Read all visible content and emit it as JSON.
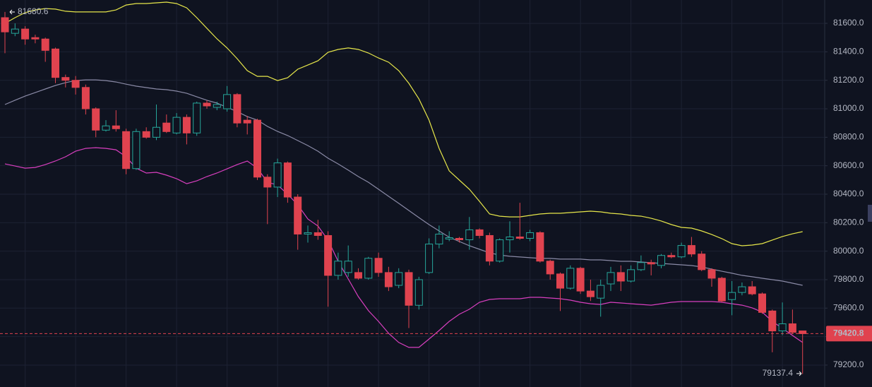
{
  "chart_data": {
    "type": "candlestick",
    "ylim": [
      79046,
      81764
    ],
    "yticks": [
      {
        "value": 79200,
        "label": "79200.0"
      },
      {
        "value": 79400,
        "label": "79400.0"
      },
      {
        "value": 79600,
        "label": "79600.0"
      },
      {
        "value": 79800,
        "label": "79800.0"
      },
      {
        "value": 80000,
        "label": "80000.0"
      },
      {
        "value": 80200,
        "label": "80200.0"
      },
      {
        "value": 80400,
        "label": "80400.0"
      },
      {
        "value": 80600,
        "label": "80600.0"
      },
      {
        "value": 80800,
        "label": "80800.0"
      },
      {
        "value": 81000,
        "label": "81000.0"
      },
      {
        "value": 81200,
        "label": "81200.0"
      },
      {
        "value": 81400,
        "label": "81400.0"
      },
      {
        "value": 81600,
        "label": "81600.0"
      }
    ],
    "grid": true,
    "up_color": "#26a69a",
    "down_color": "#e0434f",
    "candles": {
      "open": [
        81640,
        81530,
        81560,
        81500,
        81490,
        81420,
        81220,
        81200,
        81150,
        81000,
        80850,
        80880,
        80840,
        80580,
        80840,
        80800,
        80900,
        80830,
        80940,
        80830,
        81040,
        81010,
        81000,
        81100,
        80920,
        80920,
        80520,
        80450,
        80620,
        80380,
        80120,
        80130,
        80110,
        79830,
        79850,
        79850,
        79810,
        79950,
        79850,
        79760,
        79850,
        79620,
        79850,
        80050,
        80085,
        80090,
        80080,
        80150,
        80110,
        79930,
        80080,
        80100,
        80090,
        80130,
        79930,
        79840,
        79740,
        79880,
        79720,
        79670,
        79770,
        79850,
        79790,
        79870,
        79920,
        79900,
        79970,
        79960,
        80040,
        79980,
        79870,
        79810,
        79660,
        79710,
        79750,
        79700,
        79580,
        79440,
        79490,
        79440
      ],
      "high": [
        81680.6,
        81600,
        81580,
        81520,
        81500,
        81430,
        81240,
        81230,
        81170,
        81010,
        80920,
        80990,
        80860,
        80860,
        80870,
        81030,
        80960,
        80970,
        80960,
        81050,
        81060,
        81050,
        81160,
        81110,
        80950,
        80930,
        80540,
        80650,
        80630,
        80400,
        80180,
        80220,
        80140,
        79990,
        80040,
        79880,
        79960,
        79990,
        79890,
        79880,
        79870,
        79820,
        80090,
        80180,
        80140,
        80100,
        80240,
        80160,
        80130,
        80090,
        80210,
        80340,
        80150,
        80140,
        79940,
        79850,
        79900,
        79890,
        79800,
        79800,
        79890,
        79900,
        79900,
        79970,
        79940,
        79980,
        79990,
        80060,
        80100,
        80000,
        79880,
        79820,
        79790,
        79780,
        79790,
        79710,
        79590,
        79640,
        79590,
        79440
      ],
      "low": [
        81390,
        81510,
        81450,
        81460,
        81330,
        81180,
        81150,
        81100,
        80960,
        80800,
        80840,
        80840,
        80540,
        80570,
        80790,
        80780,
        80830,
        80820,
        80750,
        80810,
        81000,
        80990,
        80980,
        80870,
        80820,
        80500,
        80190,
        80380,
        80340,
        80010,
        80060,
        80080,
        79610,
        79800,
        79820,
        79800,
        79800,
        79820,
        79720,
        79740,
        79460,
        79590,
        79840,
        80020,
        80070,
        80060,
        80010,
        80090,
        79900,
        79920,
        79990,
        80080,
        80070,
        79920,
        79800,
        79580,
        79730,
        79700,
        79650,
        79540,
        79720,
        79720,
        79780,
        79860,
        79830,
        79880,
        79950,
        79950,
        79960,
        79860,
        79750,
        79640,
        79550,
        79690,
        79690,
        79560,
        79290,
        79410,
        79420,
        79137.4
      ],
      "close": [
        81540,
        81560,
        81490,
        81490,
        81410,
        81220,
        81200,
        81150,
        81000,
        80850,
        80880,
        80860,
        80580,
        80840,
        80800,
        80870,
        80840,
        80940,
        80830,
        81040,
        81020,
        81030,
        81100,
        80900,
        80900,
        80520,
        80450,
        80620,
        80380,
        80120,
        80130,
        80110,
        79830,
        79930,
        79930,
        79810,
        79950,
        79850,
        79750,
        79850,
        79620,
        79800,
        80050,
        80120,
        80095,
        80080,
        80150,
        80110,
        79930,
        80080,
        80100,
        80090,
        80130,
        79930,
        79840,
        79740,
        79880,
        79720,
        79680,
        79760,
        79850,
        79790,
        79870,
        79920,
        79910,
        79970,
        79960,
        80040,
        79980,
        79870,
        79810,
        79650,
        79710,
        79750,
        79700,
        79570,
        79440,
        79490,
        79430,
        79420.8
      ]
    },
    "series": [
      {
        "color": "#e6e64a",
        "values": [
          81600,
          81640,
          81675,
          81694,
          81704,
          81700,
          81685,
          81680,
          81680,
          81680,
          81680,
          81694,
          81729,
          81739,
          81739,
          81744,
          81749,
          81739,
          81709,
          81640,
          81565,
          81491,
          81427,
          81352,
          81268,
          81228,
          81228,
          81198,
          81218,
          81278,
          81307,
          81337,
          81397,
          81417,
          81427,
          81417,
          81392,
          81357,
          81327,
          81268,
          81179,
          81069,
          80921,
          80722,
          80564,
          80499,
          80435,
          80350,
          80261,
          80246,
          80241,
          80241,
          80251,
          80261,
          80266,
          80266,
          80271,
          80276,
          80281,
          80276,
          80266,
          80261,
          80251,
          80246,
          80231,
          80212,
          80187,
          80167,
          80162,
          80142,
          80117,
          80088,
          80053,
          80038,
          80043,
          80053,
          80078,
          80103,
          80122,
          80137
        ]
      },
      {
        "color": "#8a8aa6",
        "values": [
          81030,
          81060,
          81089,
          81114,
          81139,
          81164,
          81183,
          81198,
          81203,
          81203,
          81198,
          81188,
          81173,
          81159,
          81149,
          81139,
          81134,
          81124,
          81109,
          81084,
          81060,
          81040,
          81010,
          80980,
          80945,
          80921,
          80876,
          80841,
          80812,
          80777,
          80742,
          80702,
          80653,
          80613,
          80569,
          80524,
          80484,
          80435,
          80385,
          80336,
          80286,
          80236,
          80187,
          80142,
          80098,
          80068,
          80038,
          80013,
          79988,
          79973,
          79964,
          79959,
          79954,
          79949,
          79949,
          79944,
          79944,
          79944,
          79939,
          79939,
          79934,
          79929,
          79929,
          79924,
          79919,
          79914,
          79909,
          79904,
          79899,
          79889,
          79874,
          79859,
          79845,
          79830,
          79820,
          79810,
          79800,
          79790,
          79775,
          79760
        ]
      },
      {
        "color": "#d83fbf",
        "values": [
          80613,
          80598,
          80583,
          80588,
          80608,
          80633,
          80663,
          80702,
          80722,
          80727,
          80722,
          80712,
          80663,
          80583,
          80549,
          80554,
          80534,
          80509,
          80474,
          80494,
          80524,
          80549,
          80578,
          80608,
          80633,
          80583,
          80484,
          80465,
          80400,
          80326,
          80226,
          80177,
          80078,
          79929,
          79805,
          79681,
          79582,
          79507,
          79423,
          79359,
          79324,
          79324,
          79383,
          79443,
          79507,
          79557,
          79592,
          79641,
          79661,
          79666,
          79666,
          79666,
          79676,
          79676,
          79671,
          79666,
          79656,
          79641,
          79631,
          79626,
          79641,
          79636,
          79631,
          79626,
          79621,
          79631,
          79641,
          79646,
          79646,
          79646,
          79646,
          79641,
          79631,
          79621,
          79602,
          79572,
          79507,
          79458,
          79408,
          79359
        ]
      }
    ],
    "last_price": 79420.8,
    "high_marker": 81680.6,
    "low_marker": 79137.4
  }
}
